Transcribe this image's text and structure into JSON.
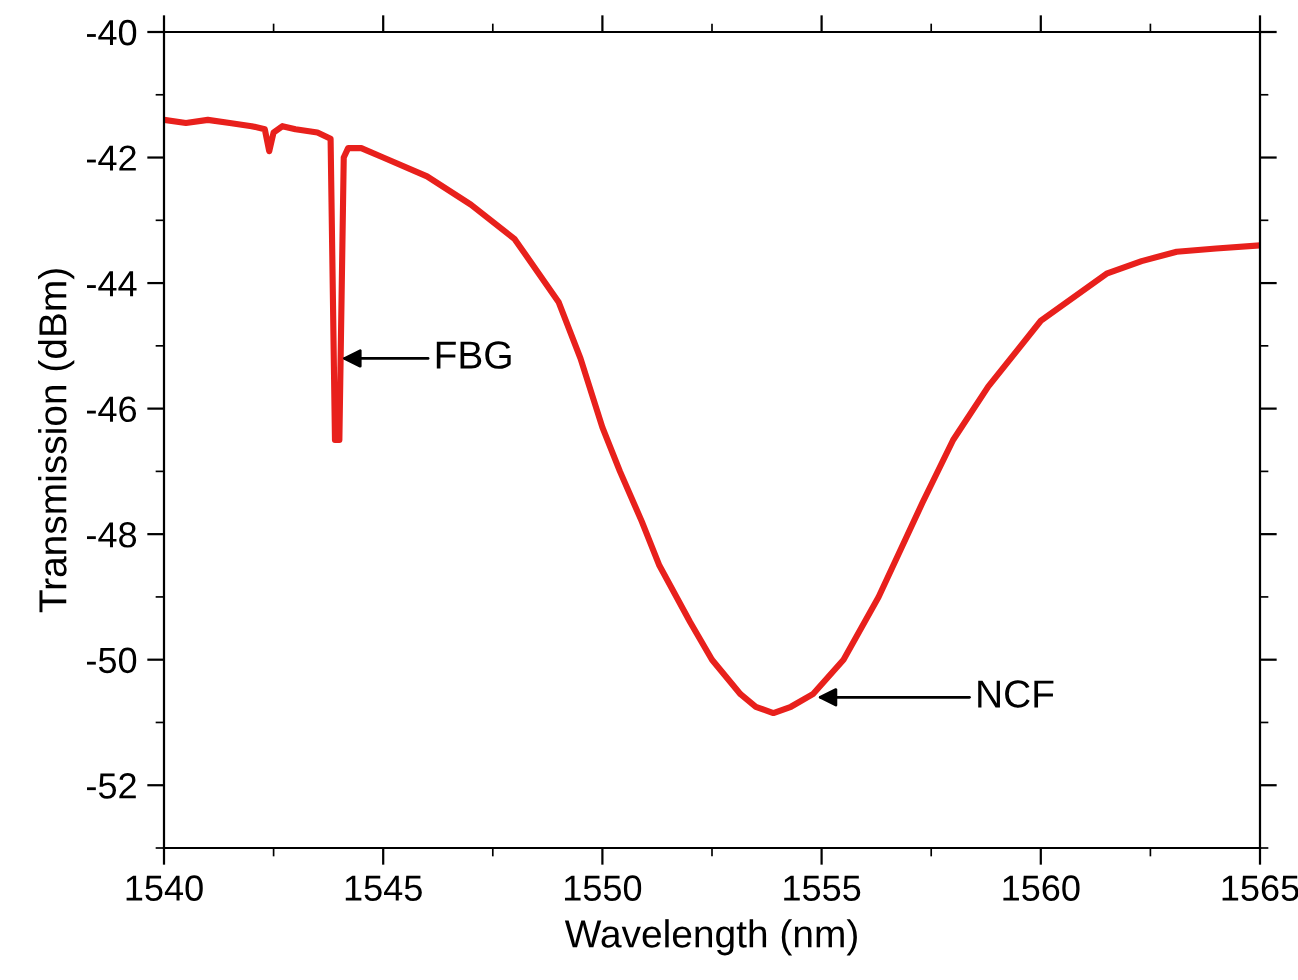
{
  "chart_data": {
    "type": "line",
    "xlabel": "Wavelength (nm)",
    "ylabel": "Transmission (dBm)",
    "series": [
      {
        "color": "#e8201c",
        "x": [
          1540,
          1540.5,
          1541,
          1541.5,
          1542,
          1542.3,
          1542.4,
          1542.5,
          1542.7,
          1543,
          1543.5,
          1543.8,
          1543.9,
          1544.0,
          1544.1,
          1544.2,
          1544.5,
          1545,
          1546,
          1547,
          1548,
          1549,
          1549.5,
          1550,
          1550.4,
          1550.9,
          1551.3,
          1552,
          1552.5,
          1553.15,
          1553.5,
          1553.9,
          1554.3,
          1554.8,
          1555.5,
          1556.3,
          1557.3,
          1558,
          1558.8,
          1560,
          1561.5,
          1562.3,
          1563.1,
          1564,
          1565
        ],
        "values": [
          -41.4,
          -41.45,
          -41.4,
          -41.45,
          -41.5,
          -41.55,
          -41.9,
          -41.6,
          -41.5,
          -41.55,
          -41.6,
          -41.7,
          -46.5,
          -46.5,
          -42.0,
          -41.85,
          -41.85,
          -42.0,
          -42.3,
          -42.75,
          -43.3,
          -44.3,
          -45.2,
          -46.3,
          -47.0,
          -47.8,
          -48.5,
          -49.4,
          -50.0,
          -50.55,
          -50.75,
          -50.85,
          -50.75,
          -50.55,
          -50.0,
          -49.0,
          -47.5,
          -46.5,
          -45.65,
          -44.6,
          -43.85,
          -43.65,
          -43.5,
          -43.45,
          -43.4
        ]
      }
    ],
    "xlim": [
      1540,
      1565
    ],
    "xticks": [
      1540,
      1545,
      1550,
      1555,
      1560,
      1565
    ],
    "ylim": [
      -53,
      -40
    ],
    "yticks": [
      -52,
      -50,
      -48,
      -46,
      -44,
      -42,
      -40
    ],
    "marker": "none",
    "line_style": "solid",
    "annotations": [
      {
        "text": "FBG",
        "x": 1544.05,
        "y": -45.2
      },
      {
        "text": "NCF",
        "x": 1554.9,
        "y": -50.6
      }
    ]
  }
}
